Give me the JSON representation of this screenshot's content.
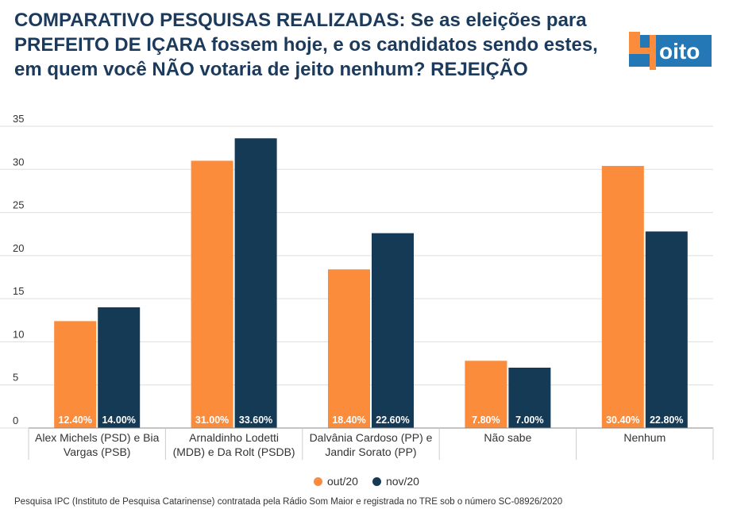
{
  "header": {
    "title": "COMPARATIVO PESQUISAS REALIZADAS: Se as eleições para PREFEITO DE IÇARA fossem hoje, e os candidatos sendo estes, em quem você NÃO votaria de jeito nenhum? REJEIÇÃO"
  },
  "logo": {
    "text_4": "4",
    "text_oito": "oito"
  },
  "colors": {
    "out20": "#fb8c3c",
    "nov20": "#143a56",
    "title": "#1b3a5c",
    "logo_bg": "#2378b5"
  },
  "chart_data": {
    "type": "bar",
    "categories": [
      [
        "Alex Michels (PSD) e Bia",
        "Vargas (PSB)"
      ],
      [
        "Arnaldinho Lodetti",
        "(MDB) e Da Rolt (PSDB)"
      ],
      [
        "Dalvânia Cardoso (PP) e",
        "Jandir Sorato (PP)"
      ],
      [
        "Não sabe"
      ],
      [
        "Nenhum"
      ]
    ],
    "series": [
      {
        "name": "out/20",
        "values": [
          12.4,
          31.0,
          18.4,
          7.8,
          30.4
        ],
        "labels": [
          "12.40%",
          "31.00%",
          "18.40%",
          "7.80%",
          "30.40%"
        ]
      },
      {
        "name": "nov/20",
        "values": [
          14.0,
          33.6,
          22.6,
          7.0,
          22.8
        ],
        "labels": [
          "14.00%",
          "33.60%",
          "22.60%",
          "7.00%",
          "22.80%"
        ]
      }
    ],
    "ylim": [
      0,
      35
    ],
    "yticks": [
      "0",
      "5",
      "10",
      "15",
      "20",
      "25",
      "30",
      "35"
    ],
    "grid": true,
    "legend_position": "bottom"
  },
  "legend": {
    "items": [
      "out/20",
      "nov/20"
    ]
  },
  "footer": {
    "source": "Pesquisa IPC (Instituto de Pesquisa Catarinense) contratada pela Rádio Som Maior e registrada no TRE sob o número SC-08926/2020"
  }
}
